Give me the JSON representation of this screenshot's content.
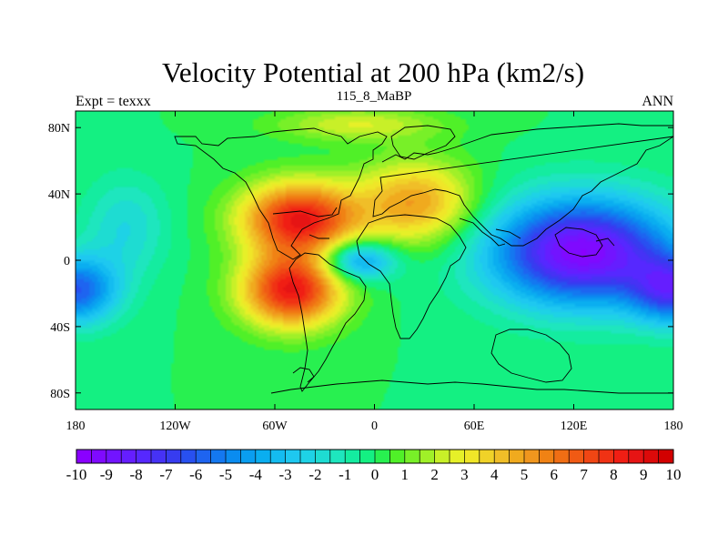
{
  "title": "Velocity Potential at 200 hPa (km2/s)",
  "left_label": "Expt = texxx",
  "center_label": "115_8_MaBP",
  "right_label": "ANN",
  "lat_labels": [
    "80N",
    "40N",
    "0",
    "40S",
    "80S"
  ],
  "lat_values": [
    80,
    40,
    0,
    -40,
    -80
  ],
  "lon_labels": [
    "180",
    "120W",
    "60W",
    "0",
    "60E",
    "120E",
    "180"
  ],
  "lon_values": [
    -180,
    -120,
    -60,
    0,
    60,
    120,
    180
  ],
  "colorbar": {
    "labels": [
      "-10",
      "-9",
      "-8",
      "-7",
      "-6",
      "-5",
      "-4",
      "-3",
      "-2",
      "-1",
      "0",
      "1",
      "2",
      "3",
      "4",
      "5",
      "6",
      "7",
      "8",
      "9",
      "10"
    ],
    "min": -10,
    "max": 10,
    "step": 0.5,
    "colors": [
      "#8a00ff",
      "#7f0aff",
      "#7214ff",
      "#651eff",
      "#5628ff",
      "#4632f5",
      "#373cf0",
      "#2850f0",
      "#1e64f0",
      "#1478f0",
      "#0a8cf0",
      "#0a9ef0",
      "#0aaef0",
      "#14bcf0",
      "#1ec8f0",
      "#1ed2e6",
      "#1edcd2",
      "#1ee6be",
      "#14eca0",
      "#14f082",
      "#28f050",
      "#50f028",
      "#78f028",
      "#a0f028",
      "#c8f028",
      "#e6f028",
      "#f0e628",
      "#f0d228",
      "#f0be28",
      "#f0aa1e",
      "#f0961e",
      "#f08214",
      "#f06e14",
      "#f05a14",
      "#f04614",
      "#f03214",
      "#f01e14",
      "#e61414",
      "#dc0a0a",
      "#d20000"
    ]
  },
  "chart_data": {
    "type": "heatmap",
    "x_range": [
      -180,
      180
    ],
    "y_range": [
      -90,
      90
    ],
    "value_range": [
      -10,
      10
    ],
    "units": "km2/s",
    "centers": [
      {
        "lon": -45,
        "lat": 25,
        "value": 8.5,
        "slon": 35,
        "slat": 22
      },
      {
        "lon": -50,
        "lat": -18,
        "value": 8.5,
        "slon": 30,
        "slat": 22
      },
      {
        "lon": 25,
        "lat": 35,
        "value": 5,
        "slon": 35,
        "slat": 25
      },
      {
        "lon": -10,
        "lat": 0,
        "value": -5,
        "slon": 22,
        "slat": 12
      },
      {
        "lon": 125,
        "lat": 5,
        "value": -9.5,
        "slon": 55,
        "slat": 32
      },
      {
        "lon": -180,
        "lat": -18,
        "value": -6,
        "slon": 25,
        "slat": 20
      },
      {
        "lon": 180,
        "lat": -18,
        "value": -6,
        "slon": 25,
        "slat": 20
      },
      {
        "lon": -150,
        "lat": 20,
        "value": -2,
        "slon": 25,
        "slat": 30
      },
      {
        "lon": -10,
        "lat": 82,
        "value": 2.5,
        "slon": 50,
        "slat": 10
      }
    ]
  }
}
